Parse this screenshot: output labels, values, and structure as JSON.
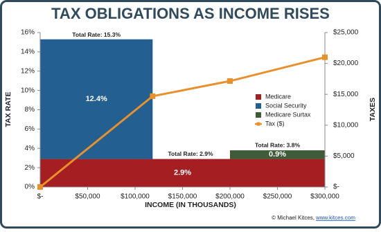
{
  "chart_data": {
    "type": "bar",
    "title": "TAX OBLIGATIONS AS INCOME RISES",
    "x_label": "INCOME (IN THOUSANDS)",
    "y_label": "TAX RATE",
    "y2_label": "TAXES",
    "credit": "© Michael Kitces,",
    "credit_link": "www.kitces.com",
    "xlim": [
      0,
      300000
    ],
    "xticks": [
      {
        "value": 0,
        "label": "$-"
      },
      {
        "value": 50000,
        "label": "$50,000"
      },
      {
        "value": 100000,
        "label": "$100,000"
      },
      {
        "value": 150000,
        "label": "$150,000"
      },
      {
        "value": 200000,
        "label": "$200,000"
      },
      {
        "value": 250000,
        "label": "$250,000"
      },
      {
        "value": 300000,
        "label": "$300,000"
      }
    ],
    "ylim": [
      0,
      16
    ],
    "yticks": [
      {
        "value": 0,
        "label": "0%"
      },
      {
        "value": 2,
        "label": "2%"
      },
      {
        "value": 4,
        "label": "4%"
      },
      {
        "value": 6,
        "label": "6%"
      },
      {
        "value": 8,
        "label": "8%"
      },
      {
        "value": 10,
        "label": "10%"
      },
      {
        "value": 12,
        "label": "12%"
      },
      {
        "value": 14,
        "label": "14%"
      },
      {
        "value": 16,
        "label": "16%"
      }
    ],
    "y2lim": [
      0,
      25000
    ],
    "y2ticks": [
      {
        "value": 0,
        "label": "$-"
      },
      {
        "value": 5000,
        "label": "$5,000"
      },
      {
        "value": 10000,
        "label": "$10,000"
      },
      {
        "value": 15000,
        "label": "$15,000"
      },
      {
        "value": 20000,
        "label": "$20,000"
      },
      {
        "value": 25000,
        "label": "$25,000"
      }
    ],
    "legend": "right",
    "series": [
      {
        "name": "Medicare",
        "color": "#a41e22",
        "spans": [
          [
            0,
            300000
          ]
        ],
        "values": [
          2.9
        ],
        "value_labels": [
          "2.9%"
        ]
      },
      {
        "name": "Social Security",
        "color": "#245f92",
        "spans": [
          [
            0,
            118500
          ]
        ],
        "values": [
          12.4
        ],
        "value_labels": [
          "12.4%"
        ]
      },
      {
        "name": "Medicare Surtax",
        "color": "#3f5b37",
        "spans": [
          [
            200000,
            300000
          ]
        ],
        "values": [
          0.9
        ],
        "value_labels": [
          "0.9%"
        ]
      },
      {
        "name": "Tax ($)",
        "type": "line",
        "axis": "y2",
        "color": "#e8902c",
        "x": [
          0,
          118500,
          200000,
          300000
        ],
        "values": [
          0,
          14700,
          17150,
          21000
        ]
      }
    ],
    "annotations": [
      "Total Rate: 15.3%",
      "Total Rate: 2.9%",
      "Total Rate: 3.8%"
    ]
  }
}
